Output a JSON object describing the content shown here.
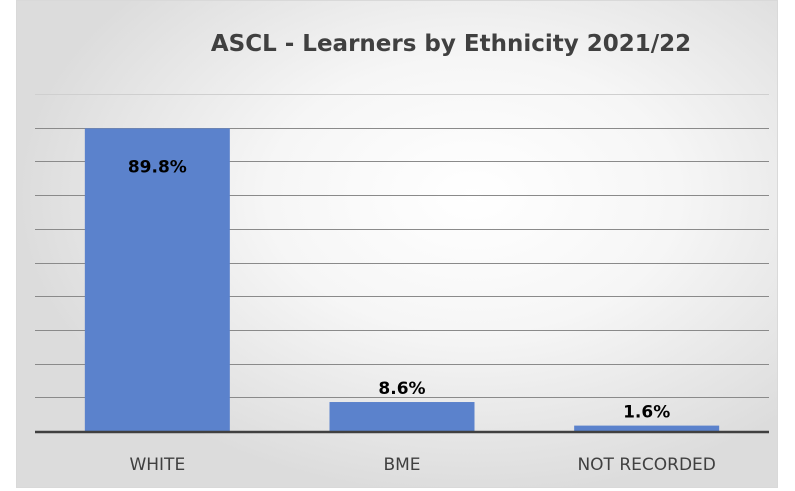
{
  "chart_data": {
    "type": "bar",
    "title": "ASCL - Learners by Ethnicity 2021/22",
    "categories": [
      "WHITE",
      "BME",
      "NOT RECORDED"
    ],
    "values": [
      89.8,
      8.6,
      1.6
    ],
    "data_labels": [
      "89.8%",
      "8.6%",
      "1.6%"
    ],
    "ylim": [
      0,
      100
    ],
    "grid": true,
    "legend": "none",
    "colors": {
      "bar": "#5b82cc",
      "axis": "#404040"
    }
  }
}
